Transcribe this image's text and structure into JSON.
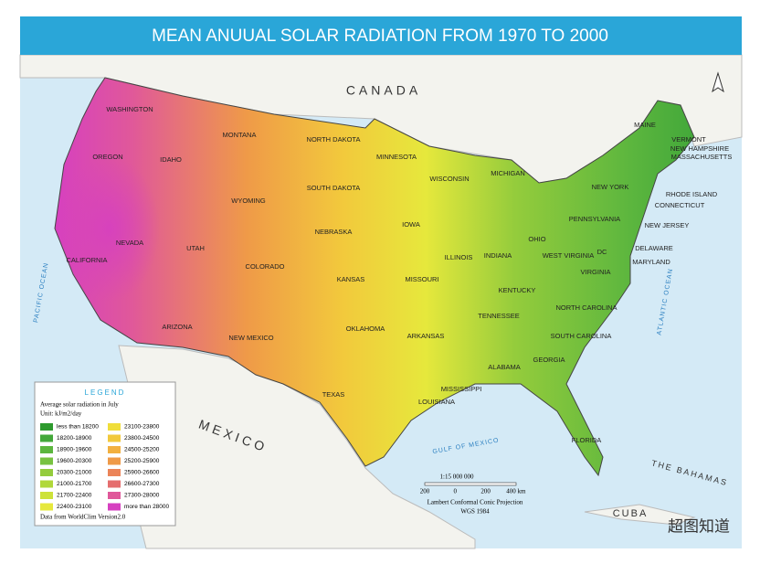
{
  "title": "MEAN ANUUAL SOLAR RADIATION FROM 1970 TO 2000",
  "countries": [
    "CANADA",
    "MEXICO",
    "CUBA",
    "THE BAHAMAS"
  ],
  "waters": [
    "PACIFIC OCEAN",
    "ATLANTIC OCEAN",
    "GULF OF MEXICO"
  ],
  "states": [
    "WASHINGTON",
    "OREGON",
    "CALIFORNIA",
    "IDAHO",
    "NEVADA",
    "MONTANA",
    "WYOMING",
    "UTAH",
    "ARIZONA",
    "COLORADO",
    "NEW MEXICO",
    "NORTH DAKOTA",
    "SOUTH DAKOTA",
    "NEBRASKA",
    "KANSAS",
    "OKLAHOMA",
    "TEXAS",
    "MINNESOTA",
    "IOWA",
    "MISSOURI",
    "ARKANSAS",
    "LOUISIANA",
    "WISCONSIN",
    "ILLINOIS",
    "MISSISSIPPI",
    "MICHIGAN",
    "INDIANA",
    "KENTUCKY",
    "TENNESSEE",
    "ALABAMA",
    "OHIO",
    "GEORGIA",
    "FLORIDA",
    "WEST VIRGINIA",
    "VIRGINIA",
    "NORTH CAROLINA",
    "SOUTH CAROLINA",
    "PENNSYLVANIA",
    "NEW YORK",
    "MAINE",
    "VERMONT",
    "NEW HAMPSHIRE",
    "MASSACHUSETTS",
    "RHODE ISLAND",
    "CONNECTICUT",
    "NEW JERSEY",
    "DELAWARE",
    "MARYLAND",
    "DC"
  ],
  "legend": {
    "title": "LEGEND",
    "subtitle": "Average solar radiation in July",
    "unit": "Unit: kJ/m2/day",
    "items": [
      {
        "label": "less than 18200",
        "color": "#2e9a2e"
      },
      {
        "label": "18200-18900",
        "color": "#43a83a"
      },
      {
        "label": "18900-19600",
        "color": "#5cb63e"
      },
      {
        "label": "19600-20300",
        "color": "#78c240"
      },
      {
        "label": "20300-21000",
        "color": "#94cc3c"
      },
      {
        "label": "21000-21700",
        "color": "#b0d83a"
      },
      {
        "label": "21700-22400",
        "color": "#cde23a"
      },
      {
        "label": "22400-23100",
        "color": "#e6e83c"
      },
      {
        "label": "23100-23800",
        "color": "#f0de3a"
      },
      {
        "label": "23800-24500",
        "color": "#f2c93c"
      },
      {
        "label": "24500-25200",
        "color": "#f2b040"
      },
      {
        "label": "25200-25900",
        "color": "#ef9a48"
      },
      {
        "label": "25900-26600",
        "color": "#eb8458"
      },
      {
        "label": "26600-27300",
        "color": "#e56e6e"
      },
      {
        "label": "27300-28000",
        "color": "#e0589a"
      },
      {
        "label": "more than 28000",
        "color": "#d640c0"
      }
    ],
    "source": "Data from WorldClim Version2.0"
  },
  "scale": {
    "ratio": "1:15 000 000",
    "ticks": [
      "200",
      "0",
      "200",
      "400 km"
    ],
    "projection": "Lambert Conformal Conic Projection",
    "datum": "WGS 1984"
  },
  "watermark": "超图知道"
}
